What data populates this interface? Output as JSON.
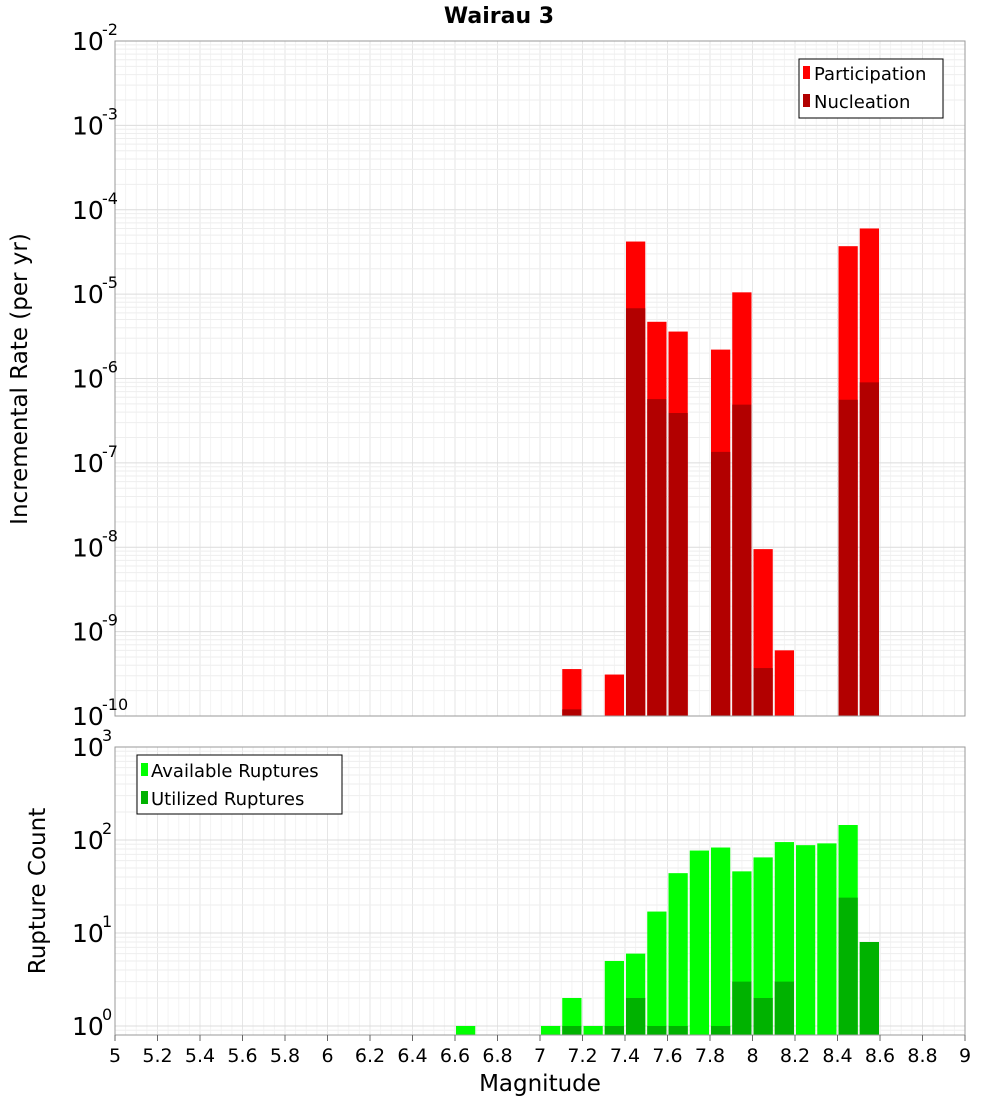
{
  "chart_data": [
    {
      "type": "bar",
      "title": "Wairau 3",
      "xlabel": "",
      "ylabel": "Incremental Rate (per yr)",
      "yscale": "log",
      "ylim": [
        1e-10,
        0.01
      ],
      "y_tick_bases": [
        "10",
        "10",
        "10",
        "10",
        "10",
        "10",
        "10",
        "10",
        "10"
      ],
      "y_tick_exponents": [
        "-10",
        "-9",
        "-8",
        "-7",
        "-6",
        "-5",
        "-4",
        "-3",
        "-2"
      ],
      "grid": true,
      "legend_position": "top-right",
      "bar_width": 0.1,
      "series": [
        {
          "name": "Participation",
          "color": "#ff0000",
          "x": [
            7.15,
            7.35,
            7.45,
            7.55,
            7.65,
            7.85,
            7.95,
            8.05,
            8.15,
            8.45,
            8.55
          ],
          "values": [
            3.6e-10,
            3.1e-10,
            4.2e-05,
            4.7e-06,
            3.6e-06,
            2.2e-06,
            1.05e-05,
            9.5e-09,
            6e-10,
            3.7e-05,
            6e-05
          ]
        },
        {
          "name": "Nucleation",
          "color": "#b20000",
          "x": [
            7.15,
            7.45,
            7.55,
            7.65,
            7.85,
            7.95,
            8.05,
            8.45,
            8.55
          ],
          "values": [
            1.2e-10,
            6.8e-06,
            5.7e-07,
            3.9e-07,
            1.35e-07,
            4.9e-07,
            3.7e-10,
            5.6e-07,
            9e-07
          ]
        }
      ]
    },
    {
      "type": "bar",
      "title": "",
      "xlabel": "Magnitude",
      "ylabel": "Rupture Count",
      "yscale": "log",
      "ylim": [
        0.8,
        1000
      ],
      "y_tick_bases": [
        "10",
        "10",
        "10",
        "10"
      ],
      "y_tick_exponents": [
        "0",
        "1",
        "2",
        "3"
      ],
      "xlim": [
        5,
        9
      ],
      "x_ticks": [
        "5",
        "5.2",
        "5.4",
        "5.6",
        "5.8",
        "6",
        "6.2",
        "6.4",
        "6.6",
        "6.8",
        "7",
        "7.2",
        "7.4",
        "7.6",
        "7.8",
        "8",
        "8.2",
        "8.4",
        "8.6",
        "8.8",
        "9"
      ],
      "grid": true,
      "legend_position": "top-left",
      "bar_width": 0.1,
      "series": [
        {
          "name": "Available Ruptures",
          "color": "#00ff00",
          "x": [
            6.65,
            7.05,
            7.15,
            7.25,
            7.35,
            7.45,
            7.55,
            7.65,
            7.75,
            7.85,
            7.95,
            8.05,
            8.15,
            8.25,
            8.35,
            8.45,
            8.55
          ],
          "values": [
            1,
            1,
            2,
            1,
            5,
            6,
            17,
            44,
            77,
            83,
            46,
            65,
            95,
            88,
            92,
            145,
            8
          ]
        },
        {
          "name": "Utilized Ruptures",
          "color": "#00b200",
          "x": [
            7.15,
            7.35,
            7.45,
            7.55,
            7.65,
            7.85,
            7.95,
            8.05,
            8.15,
            8.45,
            8.55
          ],
          "values": [
            1,
            1,
            2,
            1,
            1,
            1,
            3,
            2,
            3,
            24,
            8
          ]
        }
      ]
    }
  ]
}
